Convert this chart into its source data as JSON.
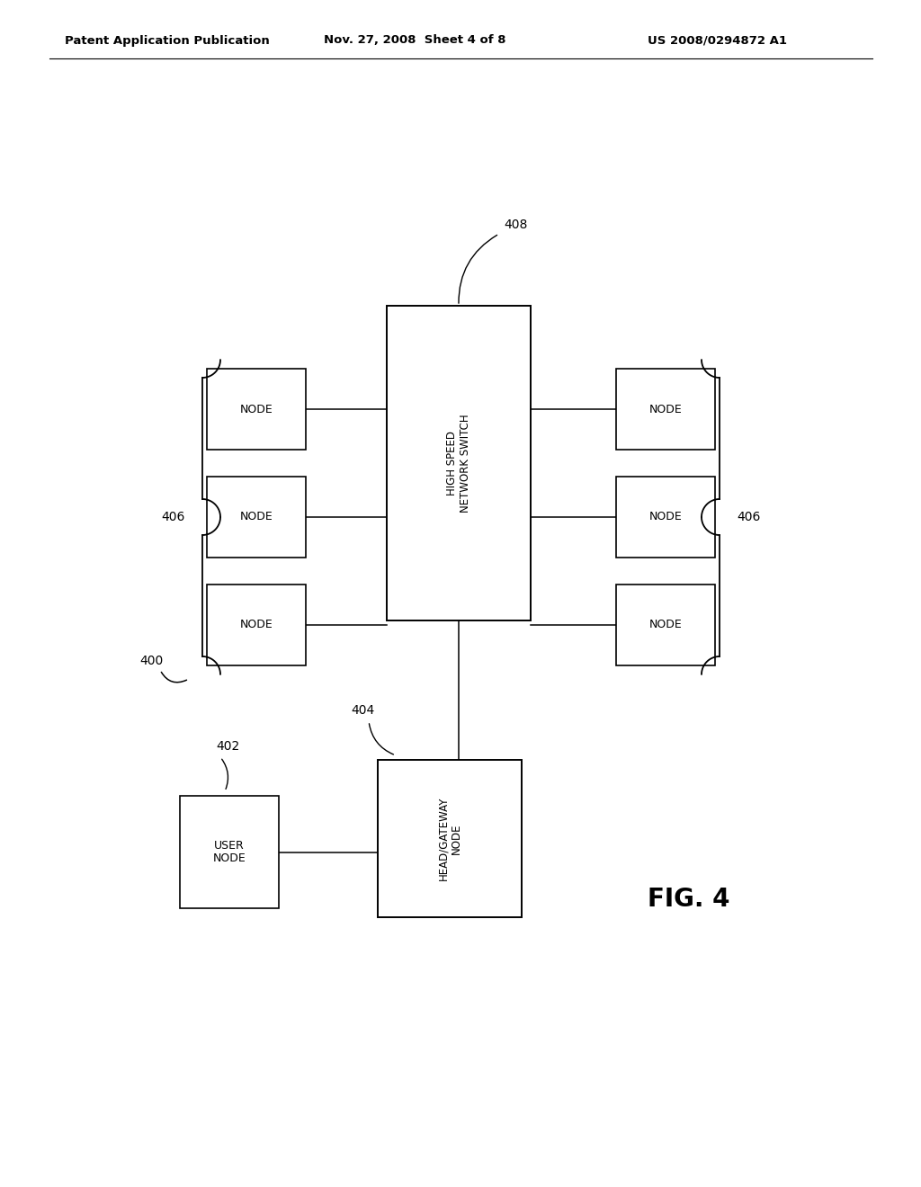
{
  "bg_color": "#ffffff",
  "header_left": "Patent Application Publication",
  "header_mid": "Nov. 27, 2008  Sheet 4 of 8",
  "header_right": "US 2008/0294872 A1",
  "fig_label": "FIG. 4",
  "switch_label": "HIGH SPEED\nNETWORK SWITCH",
  "head_gateway_label": "HEAD/GATEWAY\nNODE",
  "user_node_label": "USER\nNODE",
  "label_400": "400",
  "label_402": "402",
  "label_404": "404",
  "label_406_left": "406",
  "label_406_right": "406",
  "label_408": "408"
}
